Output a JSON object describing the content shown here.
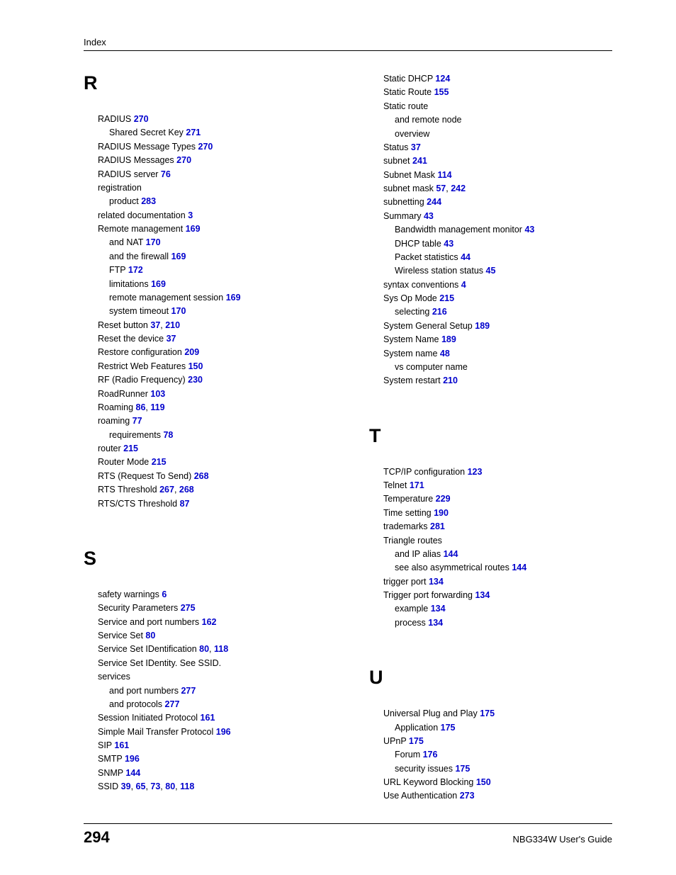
{
  "header": {
    "label": "Index"
  },
  "footer": {
    "page_number": "294",
    "guide": "NBG334W User's Guide"
  },
  "colors": {
    "link": "#0000cc",
    "text": "#000000",
    "rule": "#000000"
  },
  "left_sections": [
    {
      "letter": "R",
      "entries": [
        {
          "t": "RADIUS",
          "p": [
            "270"
          ],
          "sub": [
            {
              "t": "Shared Secret Key",
              "p": [
                "271"
              ]
            }
          ]
        },
        {
          "t": "RADIUS Message Types",
          "p": [
            "270"
          ]
        },
        {
          "t": "RADIUS Messages",
          "p": [
            "270"
          ]
        },
        {
          "t": "RADIUS server",
          "p": [
            "76"
          ]
        },
        {
          "t": "registration",
          "p": [],
          "sub": [
            {
              "t": "product",
              "p": [
                "283"
              ]
            }
          ]
        },
        {
          "t": "related documentation",
          "p": [
            "3"
          ]
        },
        {
          "t": "Remote management",
          "p": [
            "169"
          ],
          "sub": [
            {
              "t": "and NAT",
              "p": [
                "170"
              ]
            },
            {
              "t": "and the firewall",
              "p": [
                "169"
              ]
            },
            {
              "t": "FTP",
              "p": [
                "172"
              ]
            },
            {
              "t": "limitations",
              "p": [
                "169"
              ]
            },
            {
              "t": "remote management session",
              "p": [
                "169"
              ]
            },
            {
              "t": "system timeout",
              "p": [
                "170"
              ]
            }
          ]
        },
        {
          "t": "Reset button",
          "p": [
            "37",
            "210"
          ]
        },
        {
          "t": "Reset the device",
          "p": [
            "37"
          ]
        },
        {
          "t": "Restore configuration",
          "p": [
            "209"
          ]
        },
        {
          "t": "Restrict Web Features",
          "p": [
            "150"
          ]
        },
        {
          "t": "RF (Radio Frequency)",
          "p": [
            "230"
          ]
        },
        {
          "t": "RoadRunner",
          "p": [
            "103"
          ]
        },
        {
          "t": "Roaming",
          "p": [
            "86",
            "119"
          ]
        },
        {
          "t": "roaming",
          "p": [
            "77"
          ],
          "sub": [
            {
              "t": "requirements",
              "p": [
                "78"
              ]
            }
          ]
        },
        {
          "t": "router",
          "p": [
            "215"
          ]
        },
        {
          "t": "Router Mode",
          "p": [
            "215"
          ]
        },
        {
          "t": "RTS (Request To Send)",
          "p": [
            "268"
          ]
        },
        {
          "t": "RTS Threshold",
          "p": [
            "267",
            "268"
          ]
        },
        {
          "t": "RTS/CTS Threshold",
          "p": [
            "87"
          ]
        }
      ]
    },
    {
      "letter": "S",
      "entries": [
        {
          "t": "safety warnings",
          "p": [
            "6"
          ]
        },
        {
          "t": "Security Parameters",
          "p": [
            "275"
          ]
        },
        {
          "t": "Service and port numbers",
          "p": [
            "162"
          ]
        },
        {
          "t": "Service Set",
          "p": [
            "80"
          ]
        },
        {
          "t": "Service Set IDentification",
          "p": [
            "80",
            "118"
          ]
        },
        {
          "t": "Service Set IDentity. See SSID.",
          "p": []
        },
        {
          "t": "services",
          "p": [],
          "sub": [
            {
              "t": "and port numbers",
              "p": [
                "277"
              ]
            },
            {
              "t": "and protocols",
              "p": [
                "277"
              ]
            }
          ]
        },
        {
          "t": "Session Initiated Protocol",
          "p": [
            "161"
          ]
        },
        {
          "t": "Simple Mail Transfer Protocol",
          "p": [
            "196"
          ]
        },
        {
          "t": "SIP",
          "p": [
            "161"
          ]
        },
        {
          "t": "SMTP",
          "p": [
            "196"
          ]
        },
        {
          "t": "SNMP",
          "p": [
            "144"
          ]
        },
        {
          "t": "SSID",
          "p": [
            "39",
            "65",
            "73",
            "80",
            "118"
          ]
        }
      ]
    }
  ],
  "right_sections": [
    {
      "letter": "",
      "entries": [
        {
          "t": "Static DHCP",
          "p": [
            "124"
          ]
        },
        {
          "t": "Static Route",
          "p": [
            "155"
          ]
        },
        {
          "t": "Static route",
          "p": [],
          "sub": [
            {
              "t": "and remote node",
              "p": []
            },
            {
              "t": "overview",
              "p": []
            }
          ]
        },
        {
          "t": "Status",
          "p": [
            "37"
          ]
        },
        {
          "t": "subnet",
          "p": [
            "241"
          ]
        },
        {
          "t": "Subnet Mask",
          "p": [
            "114"
          ]
        },
        {
          "t": "subnet mask",
          "p": [
            "57",
            "242"
          ]
        },
        {
          "t": "subnetting",
          "p": [
            "244"
          ]
        },
        {
          "t": "Summary",
          "p": [
            "43"
          ],
          "sub": [
            {
              "t": "Bandwidth management monitor",
              "p": [
                "43"
              ]
            },
            {
              "t": "DHCP table",
              "p": [
                "43"
              ]
            },
            {
              "t": "Packet statistics",
              "p": [
                "44"
              ]
            },
            {
              "t": "Wireless station status",
              "p": [
                "45"
              ]
            }
          ]
        },
        {
          "t": "syntax conventions",
          "p": [
            "4"
          ]
        },
        {
          "t": "Sys Op Mode",
          "p": [
            "215"
          ],
          "sub": [
            {
              "t": "selecting",
              "p": [
                "216"
              ]
            }
          ]
        },
        {
          "t": "System General Setup",
          "p": [
            "189"
          ]
        },
        {
          "t": "System Name",
          "p": [
            "189"
          ]
        },
        {
          "t": "System name",
          "p": [
            "48"
          ],
          "sub": [
            {
              "t": "vs computer name",
              "p": []
            }
          ]
        },
        {
          "t": "System restart",
          "p": [
            "210"
          ]
        }
      ]
    },
    {
      "letter": "T",
      "entries": [
        {
          "t": "TCP/IP configuration",
          "p": [
            "123"
          ]
        },
        {
          "t": "Telnet",
          "p": [
            "171"
          ]
        },
        {
          "t": "Temperature",
          "p": [
            "229"
          ]
        },
        {
          "t": "Time setting",
          "p": [
            "190"
          ]
        },
        {
          "t": "trademarks",
          "p": [
            "281"
          ]
        },
        {
          "t": "Triangle routes",
          "p": [],
          "sub": [
            {
              "t": "and IP alias",
              "p": [
                "144"
              ]
            },
            {
              "t": "see also asymmetrical routes",
              "p": [
                "144"
              ]
            }
          ]
        },
        {
          "t": "trigger port",
          "p": [
            "134"
          ]
        },
        {
          "t": "Trigger port forwarding",
          "p": [
            "134"
          ],
          "sub": [
            {
              "t": "example",
              "p": [
                "134"
              ]
            },
            {
              "t": "process",
              "p": [
                "134"
              ]
            }
          ]
        }
      ]
    },
    {
      "letter": "U",
      "entries": [
        {
          "t": "Universal Plug and Play",
          "p": [
            "175"
          ],
          "sub": [
            {
              "t": "Application",
              "p": [
                "175"
              ]
            }
          ]
        },
        {
          "t": "UPnP",
          "p": [
            "175"
          ],
          "sub": [
            {
              "t": "Forum",
              "p": [
                "176"
              ]
            },
            {
              "t": "security issues",
              "p": [
                "175"
              ]
            }
          ]
        },
        {
          "t": "URL Keyword Blocking",
          "p": [
            "150"
          ]
        },
        {
          "t": "Use Authentication",
          "p": [
            "273"
          ]
        }
      ]
    }
  ]
}
